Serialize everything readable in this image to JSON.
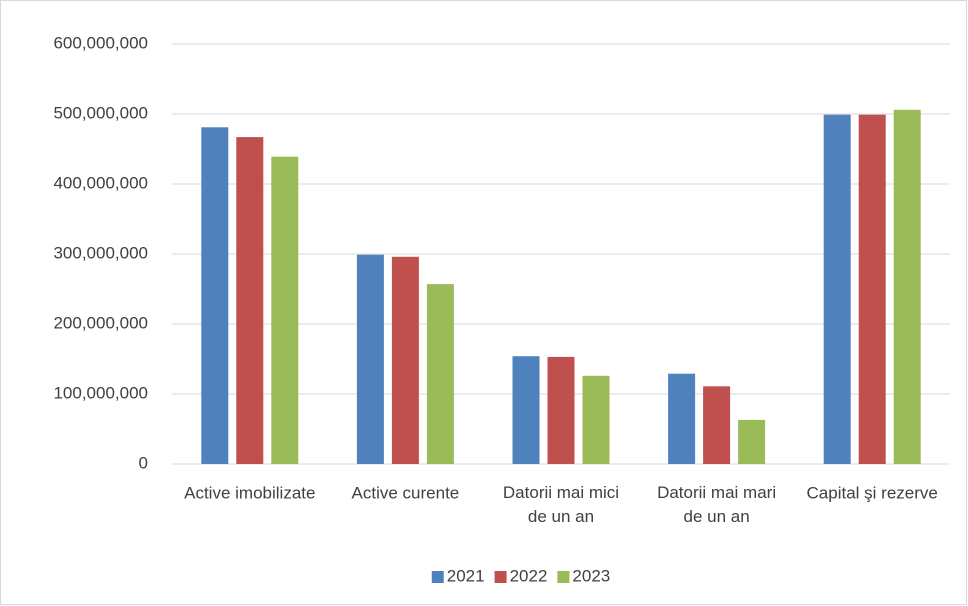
{
  "chart_data": {
    "type": "bar",
    "categories": [
      "Active imobilizate",
      "Active curente",
      "Datorii mai mici de un an",
      "Datorii mai mari de un an",
      "Capital şi rezerve"
    ],
    "series": [
      {
        "name": "2021",
        "color": "#4f81bd",
        "values": [
          481000000,
          299000000,
          154000000,
          129000000,
          499000000
        ]
      },
      {
        "name": "2022",
        "color": "#c0504d",
        "values": [
          467000000,
          296000000,
          153000000,
          111000000,
          499000000
        ]
      },
      {
        "name": "2023",
        "color": "#9bbb59",
        "values": [
          439000000,
          257000000,
          126000000,
          63000000,
          506000000
        ]
      }
    ],
    "ylim": [
      0,
      600000000
    ],
    "yticks": [
      0,
      {
        "value": 100000000,
        "label": "100,000,000"
      },
      {
        "value": 200000000,
        "label": "200,000,000"
      },
      {
        "value": 300000000,
        "label": "300,000,000"
      },
      {
        "value": 400000000,
        "label": "400,000,000"
      },
      {
        "value": 500000000,
        "label": "500,000,000"
      },
      {
        "value": 600000000,
        "label": "600,000,000"
      }
    ],
    "grid": true,
    "legend": "bottom"
  }
}
